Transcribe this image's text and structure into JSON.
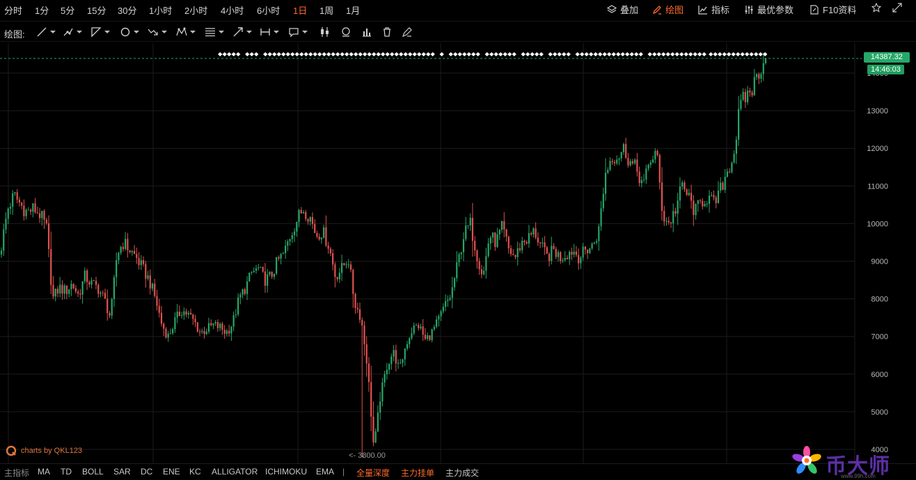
{
  "toolbar": {
    "timeframes": [
      "分时",
      "1分",
      "5分",
      "15分",
      "30分",
      "1小时",
      "2小时",
      "4小时",
      "6小时",
      "1日",
      "1周",
      "1月"
    ],
    "active_timeframe": "1日",
    "overlay_label": "叠加",
    "draw_label": "绘图",
    "indicators_label": "指标",
    "best_params_label": "最优参数",
    "f10_label": "F10资料"
  },
  "drawing_tools": {
    "label": "绘图:",
    "tools": [
      "line-icon",
      "path-icon",
      "angle-icon",
      "circle-icon",
      "wave-icon",
      "pattern-icon",
      "fib-icon",
      "arrow-icon",
      "range-icon",
      "comment-icon",
      "candles-icon",
      "template-icon",
      "bars-icon",
      "trash-icon",
      "eraser-icon"
    ]
  },
  "chart": {
    "current_price": "14387.32",
    "current_time": "14:46:03",
    "low_marker": "3800.00",
    "credit": "charts by QKL123",
    "colors": {
      "up": "#26a869",
      "down": "#e0534f",
      "grid": "#1c1c1c",
      "axis_text": "#b8b8b8",
      "price_tag": "#26a869",
      "marker_line": "#2fa36b"
    }
  },
  "chart_data": {
    "type": "candlestick",
    "interval": "1日",
    "ylim": [
      3600,
      14900
    ],
    "yticks": [
      4000,
      5000,
      6000,
      7000,
      8000,
      9000,
      10000,
      11000,
      12000,
      13000,
      14000
    ],
    "grid": true,
    "current_price": 14387.32,
    "low": 3800.0,
    "series_close": [
      9400,
      10400,
      10750,
      10500,
      10300,
      10400,
      10250,
      9900,
      8000,
      8300,
      8200,
      8400,
      8100,
      8600,
      8400,
      8300,
      8000,
      7500,
      9200,
      9500,
      9300,
      9100,
      8800,
      8500,
      8000,
      7300,
      7000,
      7400,
      7700,
      7600,
      7400,
      7100,
      7200,
      7300,
      7250,
      7100,
      7350,
      8000,
      8300,
      8700,
      8800,
      8500,
      8600,
      9000,
      9200,
      9700,
      10100,
      10400,
      10200,
      9700,
      9800,
      9400,
      8600,
      8800,
      9100,
      7900,
      7500,
      6200,
      4000,
      5400,
      6200,
      6600,
      6100,
      6800,
      7200,
      7300,
      6900,
      7100,
      7400,
      7800,
      8100,
      8900,
      9700,
      10000,
      9200,
      8600,
      9700,
      9500,
      9900,
      9300,
      9100,
      9500,
      9600,
      9800,
      9400,
      9100,
      9300,
      9100,
      9200,
      9300,
      9100,
      9300,
      9400,
      9800,
      11300,
      11800,
      11800,
      12000,
      11600,
      11400,
      11000,
      11700,
      11900,
      10200,
      10000,
      10400,
      11000,
      10700,
      10300,
      10600,
      10700,
      10500,
      10900,
      11400,
      11800,
      13100,
      13400,
      13600,
      14100,
      14387
    ]
  },
  "indicators": {
    "label": "主指标",
    "items": [
      "MA",
      "TD",
      "BOLL",
      "SAR",
      "DC",
      "ENE",
      "KC",
      "ALLIGATOR",
      "ICHIMOKU",
      "EMA"
    ],
    "separator": "|",
    "extras": [
      "全量深度",
      "主力挂单",
      "主力成交"
    ]
  },
  "branding": {
    "logo_text": "币大师",
    "url": "www.99h.com"
  }
}
